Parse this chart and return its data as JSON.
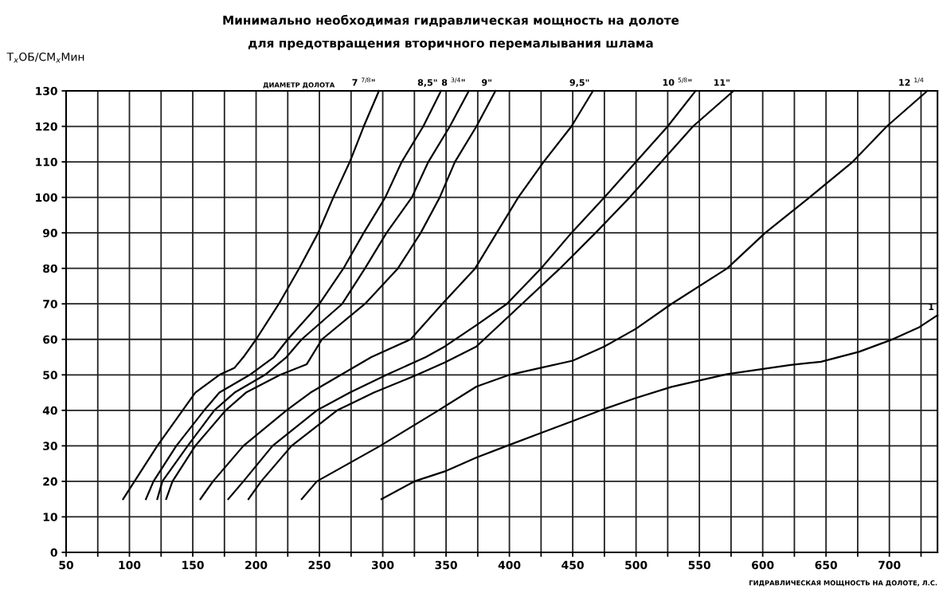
{
  "chart_data": {
    "type": "line",
    "title": "Минимально необходимая гидравлическая мощность на долоте\nдля предотвращения вторичного перемалывания шлама",
    "xlabel": "ГИДРАВЛИЧЕСКАЯ МОЩНОСТЬ НА ДОЛОТЕ, Л.С.",
    "ylabel": "T$_{x}$ОБ/СМ$_{x}$Мин",
    "annotations": [
      "ДИАМЕТР ДОЛОТА"
    ],
    "xlim": [
      50,
      738
    ],
    "ylim": [
      0,
      130
    ],
    "xticks": [
      50,
      {
        "value": 75,
        "label": null
      },
      100,
      {
        "value": 125,
        "label": null
      },
      150,
      {
        "value": 175,
        "label": null
      },
      200,
      {
        "value": 225,
        "label": null
      },
      250,
      {
        "value": 275,
        "label": null
      },
      300,
      {
        "value": 325,
        "label": null
      },
      350,
      {
        "value": 375,
        "label": null
      },
      400,
      {
        "value": 425,
        "label": null
      },
      450,
      {
        "value": 475,
        "label": null
      },
      500,
      {
        "value": 525,
        "label": null
      },
      550,
      {
        "value": 575,
        "label": null
      },
      600,
      {
        "value": 625,
        "label": null
      },
      650,
      {
        "value": 675,
        "label": null
      },
      700,
      {
        "value": 725,
        "label": null
      }
    ],
    "yticks": [
      0,
      10,
      20,
      30,
      40,
      50,
      60,
      70,
      80,
      90,
      100,
      110,
      120,
      130
    ],
    "grid": true,
    "line_style": "solid",
    "marker": "none",
    "series": [
      {
        "name": "7 $^{7/8}$\"",
        "color": "#000000",
        "x": [
          95,
          104,
          122,
          142,
          152,
          171,
          183,
          190,
          200,
          218,
          234,
          249,
          261,
          274,
          285,
          297
        ],
        "values": [
          15,
          20,
          30,
          40,
          45,
          50,
          52,
          55,
          60,
          70,
          80,
          90,
          100,
          110,
          120,
          130
        ]
      },
      {
        "name": "8,5\"",
        "color": "#000000",
        "x": [
          113,
          119,
          137,
          159,
          171,
          195,
          214,
          225,
          250,
          269,
          285,
          302,
          315,
          332,
          346
        ],
        "values": [
          15,
          20,
          30,
          40,
          45,
          50,
          55,
          60,
          70,
          80,
          90,
          100,
          110,
          120,
          130
        ]
      },
      {
        "name": "8 $^{3/4}$\"",
        "color": "#000000",
        "x": [
          122,
          126,
          146,
          167,
          183,
          207,
          224,
          236,
          268,
          286,
          303,
          323,
          336,
          353,
          368
        ],
        "values": [
          15,
          20,
          30,
          40,
          45,
          50,
          55,
          60,
          70,
          80,
          90,
          100,
          110,
          120,
          130
        ]
      },
      {
        "name": "9\"",
        "color": "#000000",
        "x": [
          129,
          134,
          152,
          176,
          192,
          219,
          240,
          252,
          286,
          312,
          330,
          345,
          357,
          374,
          389
        ],
        "values": [
          15,
          20,
          30,
          40,
          45,
          50,
          53,
          60,
          70,
          80,
          90,
          100,
          110,
          120,
          130
        ]
      },
      {
        "name": "9,5\"",
        "color": "#000000",
        "x": [
          156,
          166,
          190,
          224,
          243,
          267,
          291,
          322,
          347,
          373,
          390,
          407,
          427,
          449,
          466
        ],
        "values": [
          15,
          20,
          30,
          40,
          45,
          50,
          55,
          60,
          70,
          80,
          90,
          100,
          110,
          120,
          130
        ]
      },
      {
        "name": "10 $^{5/8}$\"",
        "color": "#000000",
        "x": [
          178,
          190,
          213,
          248,
          274,
          303,
          334,
          349,
          374,
          398,
          425,
          449,
          475,
          500,
          525,
          547
        ],
        "values": [
          15,
          20,
          30,
          40,
          45,
          50,
          55,
          58,
          64,
          70,
          80,
          90,
          100,
          110,
          120,
          130
        ]
      },
      {
        "name": "11\"",
        "color": "#000000",
        "x": [
          194,
          204,
          228,
          264,
          293,
          327,
          349,
          374,
          380,
          410,
          440,
          468,
          495,
          520,
          545,
          577
        ],
        "values": [
          15,
          20,
          30,
          40,
          45,
          50,
          53.5,
          58,
          60,
          70,
          80,
          90,
          100,
          110,
          120,
          130
        ]
      },
      {
        "name": "12 $^{1/4}$",
        "color": "#000000",
        "x": [
          236,
          248,
          298,
          344,
          374,
          400,
          425,
          450,
          475,
          500,
          528,
          572,
          602,
          637,
          671,
          698,
          730
        ],
        "values": [
          15,
          20,
          30,
          40,
          46.7,
          50,
          52,
          54,
          58,
          63,
          70,
          80,
          90,
          100,
          110,
          120,
          130
        ]
      },
      {
        "name": "1",
        "color": "#000000",
        "x": [
          299,
          325,
          349,
          374,
          398,
          424,
          450,
          475,
          500,
          528,
          572,
          622,
          646,
          676,
          701,
          723,
          738
        ],
        "values": [
          15,
          20,
          22.8,
          26.7,
          30,
          33.5,
          37,
          40.4,
          43.5,
          46.6,
          50.2,
          52.8,
          53.7,
          56.5,
          59.8,
          63.3,
          66.8
        ]
      }
    ]
  }
}
